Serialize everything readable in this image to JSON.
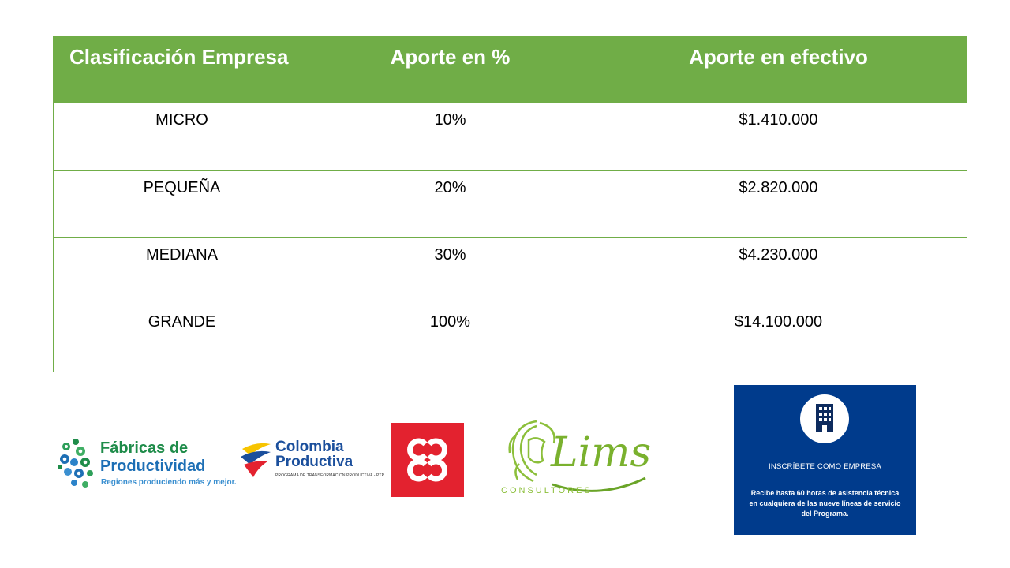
{
  "table": {
    "headers": [
      "Clasificación Empresa",
      "Aporte en %",
      "Aporte en efectivo"
    ],
    "rows": [
      [
        "MICRO",
        "10%",
        "$1.410.000"
      ],
      [
        "PEQUEÑA",
        "20%",
        "$2.820.000"
      ],
      [
        "MEDIANA",
        "30%",
        "$4.230.000"
      ],
      [
        "GRANDE",
        "100%",
        "$14.100.000"
      ]
    ],
    "accent_color": "#70ad47"
  },
  "logos": {
    "fabricas": {
      "line1": "Fábricas de",
      "line2": "Productividad",
      "tagline": "Regiones produciendo más y mejor."
    },
    "colombia": {
      "line1": "Colombia",
      "line2": "Productiva",
      "tagline": "PROGRAMA DE TRANSFORMACIÓN PRODUCTIVA - PTP"
    },
    "camara": {
      "icon": "ccc-logo-icon",
      "color": "#e3222f"
    },
    "lims": {
      "name": "Lims",
      "subtitle": "CONSULTORES"
    }
  },
  "card": {
    "icon": "building-icon",
    "title": "INSCRÍBETE COMO EMPRESA",
    "description": "Recibe hasta 60 horas de asistencia técnica en cualquiera de las nueve líneas de servicio del Programa.",
    "background": "#003b8c"
  }
}
